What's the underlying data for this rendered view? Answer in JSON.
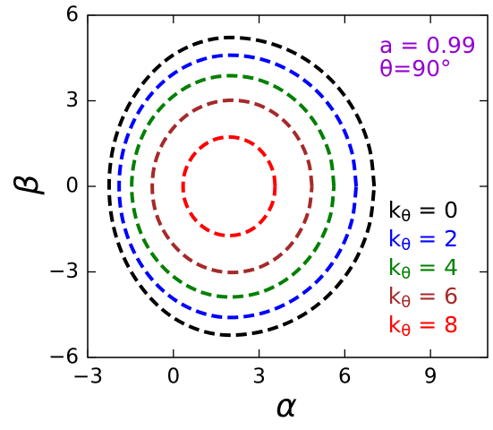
{
  "chart_data": {
    "type": "line",
    "xlabel": "α",
    "ylabel": "β",
    "annotations": [
      "a = 0.99",
      "θ=90°"
    ],
    "annotation_color": "#9400d3",
    "xlim": [
      -3,
      11
    ],
    "ylim": [
      -6,
      6
    ],
    "xticks": [
      {
        "value": -3,
        "label": "−3"
      },
      0,
      3,
      6,
      9
    ],
    "yticks": [
      {
        "value": -6,
        "label": "−6"
      },
      {
        "value": -3,
        "label": "−3"
      },
      0,
      3,
      6
    ],
    "legend": "lower right",
    "series": [
      {
        "name": "kθ = 0",
        "color": "#000000",
        "x": [
          7.03,
          6.86,
          6.36,
          5.56,
          4.52,
          3.3,
          2.0,
          0.9,
          -0.13,
          -1.0,
          -1.68,
          -2.11,
          -2.25,
          -2.11,
          -1.68,
          -1.0,
          -0.13,
          0.9,
          2.0,
          3.3,
          4.52,
          5.56,
          6.36,
          6.86,
          7.03
        ],
        "y": [
          0,
          1.35,
          2.61,
          3.69,
          4.52,
          5.04,
          5.22,
          5.04,
          4.52,
          3.69,
          2.61,
          1.35,
          0,
          -1.35,
          -2.61,
          -3.69,
          -4.52,
          -5.04,
          -5.22,
          -5.04,
          -4.52,
          -3.69,
          -2.61,
          -1.35,
          0
        ]
      },
      {
        "name": "kθ = 2",
        "color": "#0000ff",
        "x": [
          6.4,
          6.25,
          5.81,
          5.11,
          4.2,
          3.14,
          2.0,
          0.99,
          0.05,
          -0.76,
          -1.38,
          -1.77,
          -1.9,
          -1.77,
          -1.38,
          -0.76,
          0.05,
          0.99,
          2.0,
          3.14,
          4.2,
          5.11,
          5.81,
          6.25,
          6.4
        ],
        "y": [
          0,
          1.19,
          2.3,
          3.25,
          3.98,
          4.44,
          4.6,
          4.44,
          3.98,
          3.25,
          2.3,
          1.19,
          0,
          -1.19,
          -2.3,
          -3.25,
          -3.98,
          -4.44,
          -4.6,
          -4.44,
          -3.98,
          -3.25,
          -2.3,
          -1.19,
          0
        ]
      },
      {
        "name": "kθ = 4",
        "color": "#008000",
        "x": [
          5.62,
          5.5,
          5.13,
          4.56,
          3.81,
          2.94,
          2.0,
          1.1,
          0.27,
          -0.45,
          -1.0,
          -1.34,
          -1.46,
          -1.34,
          -1.0,
          -0.45,
          0.27,
          1.1,
          2.0,
          2.94,
          3.81,
          4.56,
          5.13,
          5.5,
          5.62
        ],
        "y": [
          0,
          1.0,
          1.94,
          2.74,
          3.36,
          3.75,
          3.88,
          3.75,
          3.36,
          2.74,
          1.94,
          1.0,
          0,
          -1.0,
          -1.94,
          -2.74,
          -3.36,
          -3.75,
          -3.88,
          -3.75,
          -3.36,
          -2.74,
          -1.94,
          -1.0,
          0
        ]
      },
      {
        "name": "kθ = 6",
        "color": "#a52a2a",
        "x": [
          4.85,
          4.75,
          4.47,
          4.03,
          3.45,
          2.78,
          2.05,
          1.33,
          0.65,
          0.08,
          -0.37,
          -0.65,
          -0.74,
          -0.65,
          -0.37,
          0.08,
          0.65,
          1.33,
          2.05,
          2.78,
          3.45,
          4.03,
          4.47,
          4.75,
          4.85
        ],
        "y": [
          0,
          0.78,
          1.51,
          2.14,
          2.62,
          2.92,
          3.02,
          2.92,
          2.62,
          2.14,
          1.51,
          0.78,
          0,
          -0.78,
          -1.51,
          -2.14,
          -2.62,
          -2.92,
          -3.02,
          -2.92,
          -2.62,
          -2.14,
          -1.51,
          -0.78,
          0
        ]
      },
      {
        "name": "kθ = 8",
        "color": "#ff0000",
        "x": [
          3.56,
          3.51,
          3.34,
          3.09,
          2.76,
          2.37,
          1.95,
          1.53,
          1.15,
          0.81,
          0.56,
          0.39,
          0.34,
          0.39,
          0.56,
          0.81,
          1.15,
          1.53,
          1.95,
          2.37,
          2.76,
          3.09,
          3.34,
          3.51,
          3.56
        ],
        "y": [
          0,
          0.45,
          0.87,
          1.22,
          1.5,
          1.67,
          1.73,
          1.67,
          1.5,
          1.22,
          0.87,
          0.45,
          0,
          -0.45,
          -0.87,
          -1.22,
          -1.5,
          -1.67,
          -1.73,
          -1.67,
          -1.5,
          -1.22,
          -0.87,
          -0.45,
          0
        ]
      }
    ]
  }
}
